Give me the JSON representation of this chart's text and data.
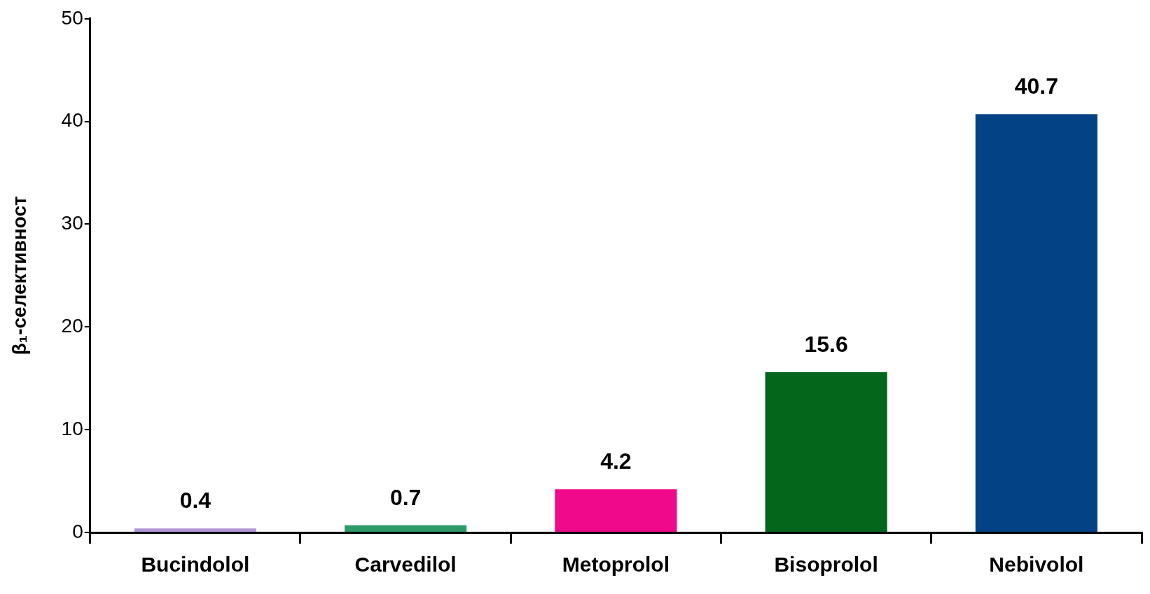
{
  "chart_data": {
    "type": "bar",
    "ylabel": "β₁-селективност",
    "categories": [
      "Bucindolol",
      "Carvedilol",
      "Metoprolol",
      "Bisoprolol",
      "Nebivolol"
    ],
    "values": [
      0.4,
      0.7,
      4.2,
      15.6,
      40.7
    ],
    "colors": [
      "#b39ad6",
      "#2e9a68",
      "#f0098a",
      "#03661a",
      "#034385"
    ],
    "ylim": [
      0,
      50
    ],
    "yticks": [
      0,
      10,
      20,
      30,
      40,
      50
    ],
    "grid": false,
    "legend": false,
    "data_labels": true
  }
}
